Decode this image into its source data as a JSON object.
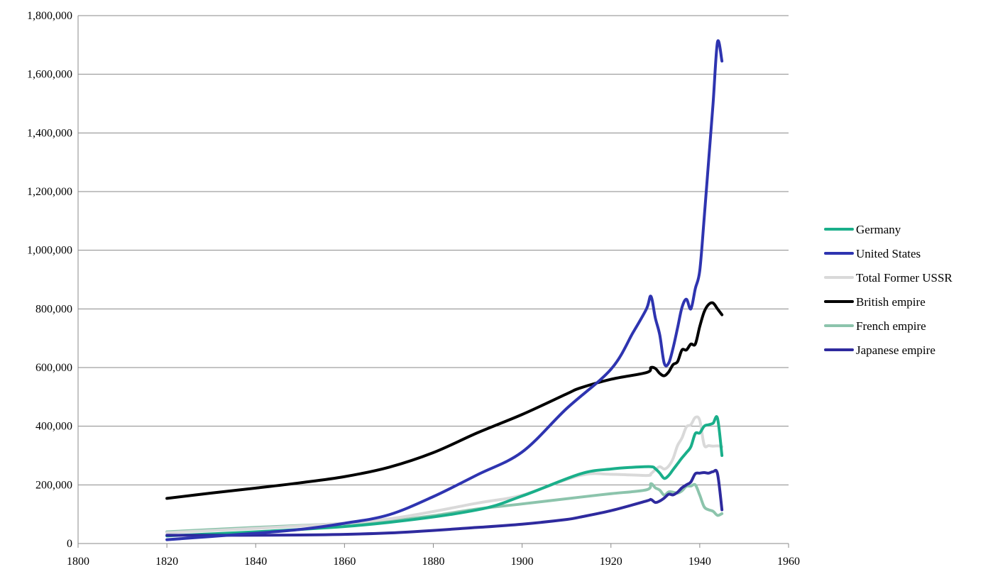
{
  "chart_data": {
    "type": "line",
    "title": "",
    "xlabel": "",
    "ylabel": "",
    "xlim": [
      1800,
      1960
    ],
    "ylim": [
      0,
      1800000
    ],
    "x_ticks": [
      1800,
      1820,
      1840,
      1860,
      1880,
      1900,
      1920,
      1940,
      1960
    ],
    "x_tick_labels": [
      "1800",
      "1820",
      "1840",
      "1860",
      "1880",
      "1900",
      "1920",
      "1940",
      "1960"
    ],
    "y_ticks": [
      0,
      200000,
      400000,
      600000,
      800000,
      1000000,
      1200000,
      1400000,
      1600000,
      1800000
    ],
    "y_tick_labels": [
      "0",
      "200,000",
      "400,000",
      "600,000",
      "800,000",
      "1,000,000",
      "1,200,000",
      "1,400,000",
      "1,600,000",
      "1,800,000"
    ],
    "grid": "horizontal",
    "legend_position": "right",
    "series": [
      {
        "name": "Germany",
        "color": "#1aaf8a",
        "x": [
          1820,
          1850,
          1870,
          1890,
          1900,
          1913,
          1920,
          1925,
          1929,
          1930,
          1931,
          1932,
          1933,
          1934,
          1935,
          1936,
          1937,
          1938,
          1939,
          1940,
          1941,
          1942,
          1943,
          1944,
          1945
        ],
        "y": [
          26000,
          48000,
          72000,
          115000,
          162000,
          237000,
          254000,
          260000,
          262000,
          255000,
          240000,
          222000,
          232000,
          252000,
          272000,
          292000,
          310000,
          330000,
          375000,
          377000,
          400000,
          405000,
          410000,
          427000,
          300000
        ]
      },
      {
        "name": "United States",
        "color": "#2e34b0",
        "x": [
          1820,
          1830,
          1840,
          1850,
          1860,
          1870,
          1880,
          1890,
          1900,
          1910,
          1920,
          1925,
          1928,
          1929,
          1930,
          1931,
          1932,
          1933,
          1934,
          1935,
          1936,
          1937,
          1938,
          1939,
          1940,
          1941,
          1942,
          1943,
          1944,
          1945
        ],
        "y": [
          13000,
          24000,
          35000,
          48000,
          69000,
          98000,
          160000,
          235000,
          312000,
          460000,
          594000,
          720000,
          800000,
          843000,
          769000,
          711000,
          615000,
          615000,
          667000,
          735000,
          805000,
          833000,
          800000,
          869000,
          930000,
          1110000,
          1305000,
          1500000,
          1710000,
          1645000
        ]
      },
      {
        "name": "Total Former USSR",
        "color": "#d9d9d9",
        "x": [
          1820,
          1850,
          1870,
          1890,
          1900,
          1913,
          1920,
          1928,
          1929,
          1930,
          1931,
          1932,
          1933,
          1934,
          1935,
          1936,
          1937,
          1938,
          1939,
          1940,
          1941,
          1942,
          1943,
          1944,
          1945
        ],
        "y": [
          37000,
          60000,
          84000,
          138000,
          165000,
          232000,
          236000,
          232000,
          238000,
          252000,
          262000,
          254000,
          264000,
          290000,
          334000,
          360000,
          398000,
          405000,
          430000,
          420000,
          336000,
          334000,
          332000,
          333000,
          330000
        ]
      },
      {
        "name": "British empire",
        "color": "#000000",
        "x": [
          1820,
          1830,
          1840,
          1850,
          1860,
          1870,
          1880,
          1890,
          1900,
          1910,
          1913,
          1920,
          1928,
          1929,
          1930,
          1931,
          1932,
          1933,
          1934,
          1935,
          1936,
          1937,
          1938,
          1939,
          1940,
          1941,
          1942,
          1943,
          1944,
          1945
        ],
        "y": [
          154000,
          172000,
          189000,
          207000,
          228000,
          260000,
          310000,
          378000,
          440000,
          510000,
          530000,
          560000,
          583000,
          600000,
          597000,
          580000,
          572000,
          585000,
          610000,
          620000,
          660000,
          660000,
          680000,
          680000,
          740000,
          790000,
          815000,
          820000,
          800000,
          780000
        ]
      },
      {
        "name": "French empire",
        "color": "#8cc4ac",
        "x": [
          1820,
          1840,
          1860,
          1870,
          1880,
          1890,
          1900,
          1913,
          1920,
          1928,
          1929,
          1930,
          1931,
          1932,
          1933,
          1934,
          1935,
          1936,
          1937,
          1938,
          1939,
          1940,
          1941,
          1942,
          1943,
          1944,
          1945
        ],
        "y": [
          40000,
          55000,
          68000,
          77000,
          95000,
          118000,
          135000,
          158000,
          170000,
          183000,
          204000,
          190000,
          182000,
          165000,
          176000,
          175000,
          172000,
          180000,
          195000,
          196000,
          200000,
          165000,
          125000,
          115000,
          110000,
          96000,
          102000
        ]
      },
      {
        "name": "Japanese empire",
        "color": "#2e2a9e",
        "x": [
          1820,
          1850,
          1870,
          1890,
          1900,
          1910,
          1913,
          1920,
          1928,
          1929,
          1930,
          1931,
          1932,
          1933,
          1934,
          1935,
          1936,
          1937,
          1938,
          1939,
          1940,
          1941,
          1942,
          1943,
          1944,
          1945
        ],
        "y": [
          28000,
          29000,
          36000,
          55000,
          66000,
          82000,
          90000,
          112000,
          145000,
          150000,
          140000,
          145000,
          155000,
          168000,
          166000,
          175000,
          190000,
          200000,
          210000,
          238000,
          240000,
          242000,
          240000,
          245000,
          238000,
          115000
        ]
      }
    ]
  }
}
